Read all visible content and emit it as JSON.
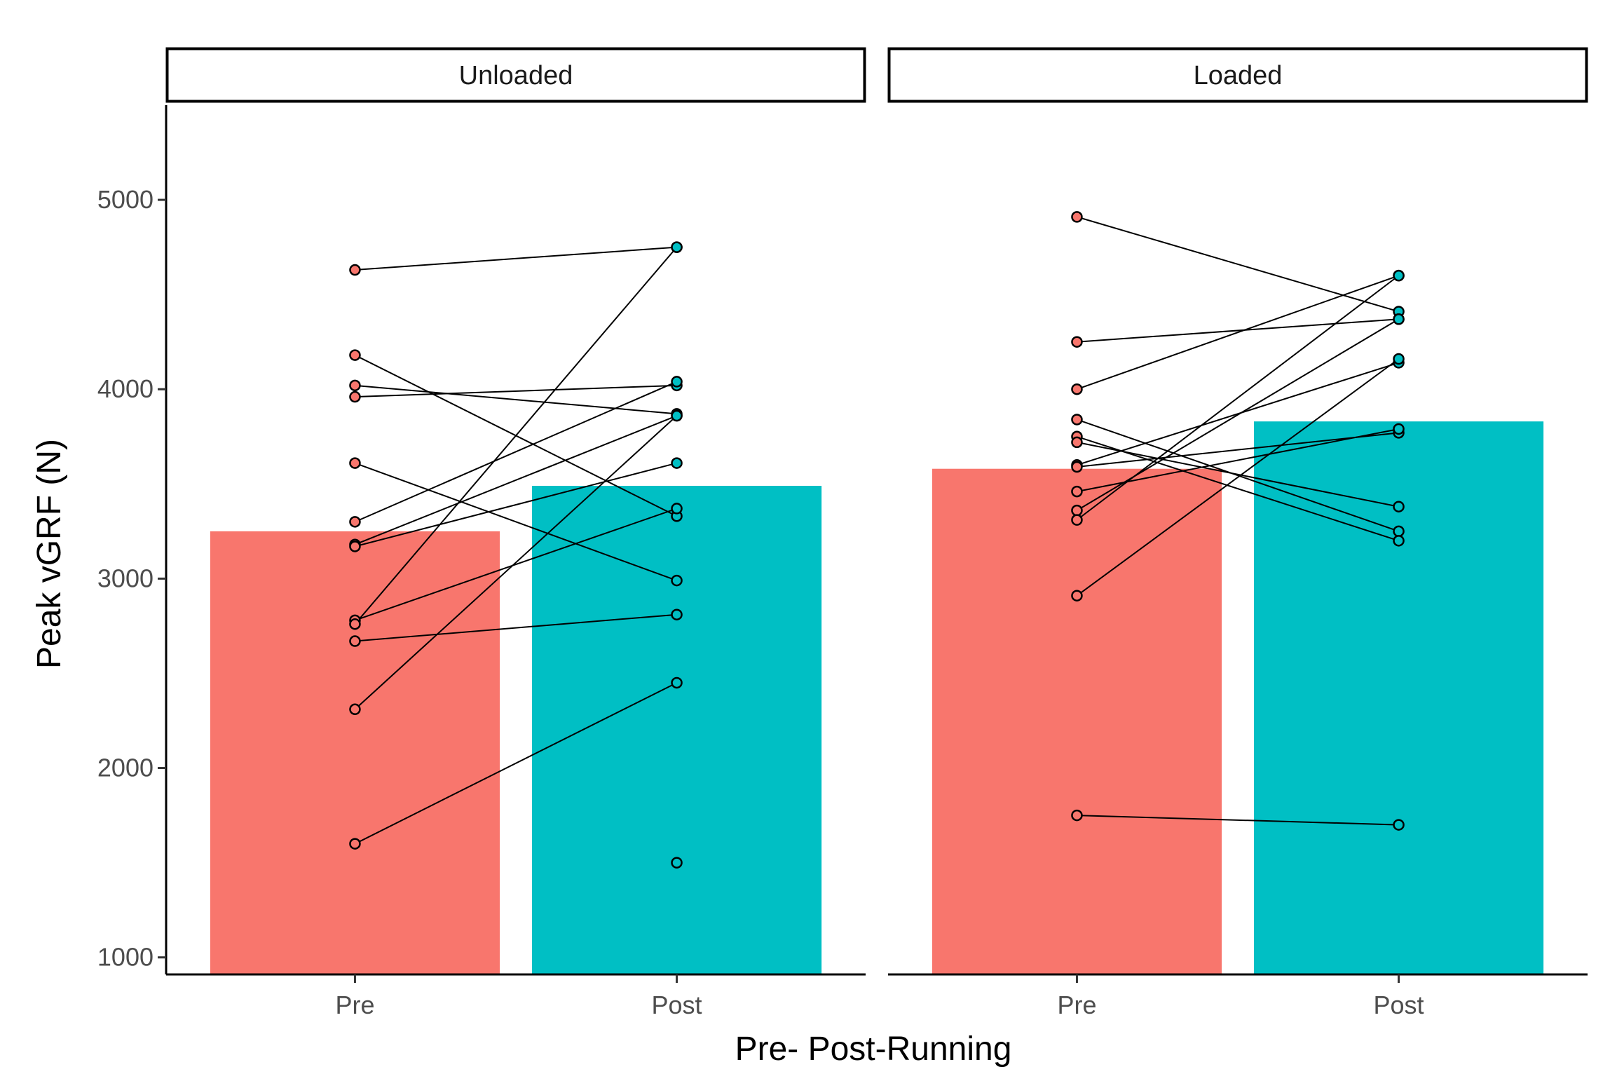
{
  "chart_data": {
    "type": "bar",
    "categories": [
      "Pre",
      "Post"
    ],
    "xlabel": "Pre- Post-Running",
    "ylabel": "Peak vGRF (N)",
    "ylim": [
      910,
      5500
    ],
    "yticks": [
      1000,
      2000,
      3000,
      4000,
      5000
    ],
    "colors": {
      "Pre": "#F8766D",
      "Post": "#00BFC4"
    },
    "panels": [
      {
        "title": "Unloaded",
        "bars": {
          "Pre": 3250,
          "Post": 3490
        },
        "pairs": [
          [
            4630,
            4750
          ],
          [
            4180,
            3330
          ],
          [
            4020,
            3870
          ],
          [
            3960,
            4020
          ],
          [
            3610,
            2990
          ],
          [
            3300,
            4040
          ],
          [
            3180,
            3860
          ],
          [
            3170,
            3610
          ],
          [
            2780,
            3370
          ],
          [
            2760,
            4750
          ],
          [
            2670,
            2810
          ],
          [
            2310,
            3860
          ],
          [
            1600,
            2450
          ],
          [
            null,
            1500
          ]
        ]
      },
      {
        "title": "Loaded",
        "bars": {
          "Pre": 3580,
          "Post": 3830
        },
        "pairs": [
          [
            4910,
            4410
          ],
          [
            4250,
            4370
          ],
          [
            4000,
            4600
          ],
          [
            3840,
            3250
          ],
          [
            3750,
            3200
          ],
          [
            3720,
            3380
          ],
          [
            3600,
            4140
          ],
          [
            3590,
            3770
          ],
          [
            3460,
            3790
          ],
          [
            3360,
            4370
          ],
          [
            3310,
            4600
          ],
          [
            2910,
            4160
          ],
          [
            1750,
            1700
          ]
        ]
      }
    ]
  }
}
